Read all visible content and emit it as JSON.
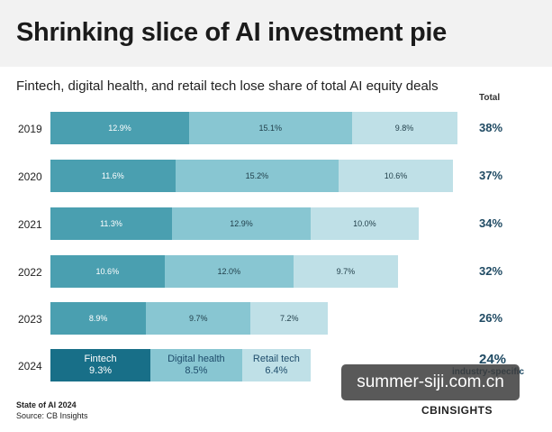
{
  "header": {
    "title": "Shrinking slice of AI investment pie",
    "subtitle": "Fintech, digital health, and retail tech lose share of total AI equity deals"
  },
  "colors": {
    "fintech": "#4a9fb0",
    "fintech_2024": "#186f88",
    "digital_health": "#88c6d2",
    "retail_tech": "#bfe0e7",
    "total_text": "#1f4a63"
  },
  "chart_data": {
    "type": "bar",
    "orientation": "horizontal",
    "stacked": true,
    "categories": [
      "2019",
      "2020",
      "2021",
      "2022",
      "2023",
      "2024"
    ],
    "series": [
      {
        "name": "Fintech",
        "values": [
          12.9,
          11.6,
          11.3,
          10.6,
          8.9,
          9.3
        ]
      },
      {
        "name": "Digital health",
        "values": [
          15.1,
          15.2,
          12.9,
          12.0,
          9.7,
          8.5
        ]
      },
      {
        "name": "Retail tech",
        "values": [
          9.8,
          10.6,
          10.0,
          9.7,
          7.2,
          6.4
        ]
      }
    ],
    "segment_labels": [
      [
        "12.9%",
        "15.1%",
        "9.8%"
      ],
      [
        "11.6%",
        "15.2%",
        "10.6%"
      ],
      [
        "11.3%",
        "12.9%",
        "10.0%"
      ],
      [
        "10.6%",
        "12.0%",
        "9.7%"
      ],
      [
        "8.9%",
        "9.7%",
        "7.2%"
      ],
      [
        "9.3%",
        "8.5%",
        "6.4%"
      ]
    ],
    "totals_header": "Total",
    "totals": [
      "38%",
      "37%",
      "34%",
      "32%",
      "26%",
      "24%"
    ],
    "total_annotation": "industry-specific",
    "xlim": [
      0,
      38
    ],
    "grid": false,
    "legend": "inline-last-bar"
  },
  "footer": {
    "source_title": "State of AI 2024",
    "source": "Source: CB Insights",
    "logo_text": "CBINSIGHTS"
  },
  "watermark": {
    "text": "summer-siji.com.cn"
  }
}
